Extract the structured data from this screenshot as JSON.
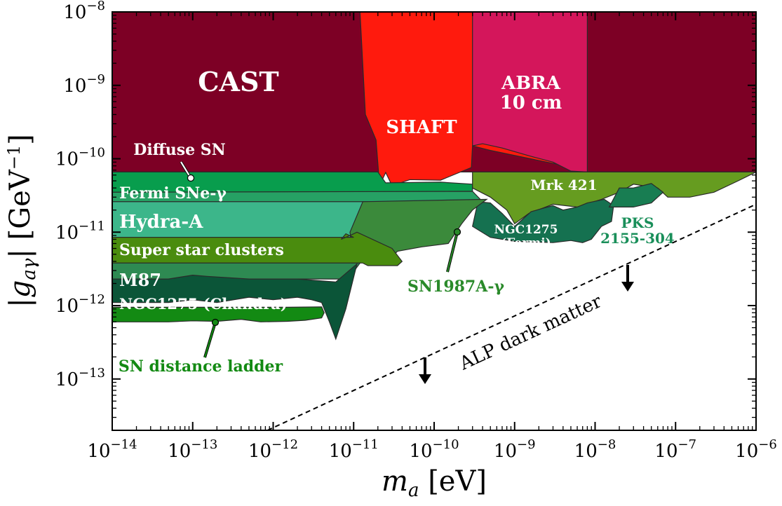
{
  "chart_data": {
    "type": "area",
    "x_scale": "log",
    "y_scale": "log",
    "xlim": [
      1e-14,
      1e-06
    ],
    "ylim": [
      2e-14,
      1e-08
    ],
    "xlabel": "m_a [eV]",
    "ylabel": "|g_aγ| [GeV^-1]",
    "x_ticks": [
      {
        "value": 1e-14,
        "base": "10",
        "exp": "−14"
      },
      {
        "value": 1e-13,
        "base": "10",
        "exp": "−13"
      },
      {
        "value": 1e-12,
        "base": "10",
        "exp": "−12"
      },
      {
        "value": 1e-11,
        "base": "10",
        "exp": "−11"
      },
      {
        "value": 1e-10,
        "base": "10",
        "exp": "−10"
      },
      {
        "value": 1e-09,
        "base": "10",
        "exp": "−9"
      },
      {
        "value": 1e-08,
        "base": "10",
        "exp": "−8"
      },
      {
        "value": 1e-07,
        "base": "10",
        "exp": "−7"
      },
      {
        "value": 1e-06,
        "base": "10",
        "exp": "−6"
      }
    ],
    "y_ticks": [
      {
        "value": 1e-13,
        "base": "10",
        "exp": "−13"
      },
      {
        "value": 1e-12,
        "base": "10",
        "exp": "−12"
      },
      {
        "value": 1e-11,
        "base": "10",
        "exp": "−11"
      },
      {
        "value": 1e-10,
        "base": "10",
        "exp": "−10"
      },
      {
        "value": 1e-09,
        "base": "10",
        "exp": "−9"
      },
      {
        "value": 1e-08,
        "base": "10",
        "exp": "−8"
      }
    ],
    "regions": [
      {
        "name": "CAST",
        "color": "#7d0025",
        "label_color": "#ffffff",
        "polygon": [
          [
            1e-14,
            1e-08
          ],
          [
            1e-06,
            1e-08
          ],
          [
            1e-06,
            6.6e-11
          ],
          [
            1e-14,
            6.6e-11
          ]
        ]
      },
      {
        "name": "SHAFT",
        "color": "#ff1a0d",
        "label_color": "#ffffff",
        "polygon": [
          [
            1.2e-11,
            1e-08
          ],
          [
            8e-09,
            1e-08
          ],
          [
            8e-09,
            7e-11
          ],
          [
            2.5e-09,
            9e-11
          ],
          [
            5e-10,
            1.3e-10
          ],
          [
            3e-10,
            1.5e-10
          ],
          [
            2.9e-10,
            7.6e-11
          ],
          [
            1.2e-10,
            5.1e-11
          ],
          [
            5e-11,
            5.2e-11
          ],
          [
            3e-11,
            4.3e-11
          ],
          [
            2.5e-11,
            6.5e-11
          ],
          [
            2.1e-11,
            4.3e-11
          ],
          [
            1.9e-11,
            1.8e-10
          ],
          [
            1.4e-11,
            4e-10
          ]
        ]
      },
      {
        "name": "ABRA\n10 cm",
        "color": "#d4165b",
        "label_color": "#ffffff",
        "polygon": [
          [
            3e-10,
            1e-08
          ],
          [
            8e-09,
            1e-08
          ],
          [
            8e-09,
            6.6e-11
          ],
          [
            5e-09,
            6.8e-11
          ],
          [
            3e-09,
            9e-11
          ],
          [
            1.5e-09,
            1.1e-10
          ],
          [
            7e-10,
            1.4e-10
          ],
          [
            4e-10,
            1.6e-10
          ],
          [
            3e-10,
            1.5e-10
          ]
        ]
      },
      {
        "name": "Diffuse SN",
        "color": "#089d4d",
        "label_color": "#ffffff",
        "polygon": [
          [
            1e-14,
            6.6e-11
          ],
          [
            2e-11,
            6.6e-11
          ],
          [
            2.5e-11,
            4.7e-11
          ],
          [
            1.2e-10,
            4.8e-11
          ],
          [
            3e-10,
            4.5e-11
          ],
          [
            3e-10,
            3.5e-11
          ],
          [
            1e-14,
            3.5e-11
          ]
        ]
      },
      {
        "name": "Fermi SNe-γ",
        "color": "#26a164",
        "label_color": "#ffffff",
        "polygon": [
          [
            1e-14,
            3.5e-11
          ],
          [
            3e-10,
            3.6e-11
          ],
          [
            4e-10,
            2.6e-11
          ],
          [
            1e-14,
            2.6e-11
          ]
        ]
      },
      {
        "name": "Hydra-A",
        "color": "#3cb68a",
        "label_color": "#ffffff",
        "polygon": [
          [
            1e-14,
            2.6e-11
          ],
          [
            2.3e-11,
            2.6e-11
          ],
          [
            1.2e-11,
            1.5e-11
          ],
          [
            9e-12,
            8.5e-12
          ],
          [
            1e-14,
            8.5e-12
          ]
        ]
      },
      {
        "name": "Mrk 421",
        "color": "#669c20",
        "label_color": "#ffffff",
        "polygon": [
          [
            3e-10,
            6.6e-11
          ],
          [
            1e-06,
            6.6e-11
          ],
          [
            6e-07,
            5e-11
          ],
          [
            3e-07,
            3.5e-11
          ],
          [
            1.5e-07,
            3e-11
          ],
          [
            8e-08,
            3e-11
          ],
          [
            6e-08,
            4e-11
          ],
          [
            3e-08,
            4.5e-11
          ],
          [
            2e-08,
            3.5e-11
          ],
          [
            1.2e-08,
            2.8e-11
          ],
          [
            6e-09,
            2.2e-11
          ],
          [
            3e-09,
            2.4e-11
          ],
          [
            1.5e-09,
            1.8e-11
          ],
          [
            1e-09,
            1.3e-11
          ],
          [
            8e-10,
            2e-11
          ],
          [
            5e-10,
            3e-11
          ],
          [
            3e-10,
            4e-11
          ]
        ]
      },
      {
        "name": "NGC1275\n(Fermi)",
        "color": "#157150",
        "label_color": "#ffffff",
        "polygon": [
          [
            3.5e-10,
            2.6e-11
          ],
          [
            5e-10,
            2.5e-11
          ],
          [
            7e-10,
            1.8e-11
          ],
          [
            1e-09,
            1.2e-11
          ],
          [
            1.6e-09,
            1.9e-11
          ],
          [
            2.2e-09,
            2.1e-11
          ],
          [
            3e-09,
            2.3e-11
          ],
          [
            4e-09,
            2e-11
          ],
          [
            6e-09,
            2.2e-11
          ],
          [
            8e-09,
            2.5e-11
          ],
          [
            1.3e-08,
            2.8e-11
          ],
          [
            1.7e-08,
            2.3e-11
          ],
          [
            1.6e-08,
            1.4e-11
          ],
          [
            1.2e-08,
            1.2e-11
          ],
          [
            9e-09,
            8e-12
          ],
          [
            7e-09,
            7.2e-12
          ],
          [
            5e-09,
            7.7e-12
          ],
          [
            3e-09,
            7.2e-12
          ],
          [
            1e-09,
            7.5e-12
          ],
          [
            5e-10,
            8.5e-12
          ],
          [
            3e-10,
            1.2e-11
          ]
        ]
      },
      {
        "name": "PKS\n2155-304",
        "color": "#187d52",
        "label_color": "#1a8f5a",
        "polygon": [
          [
            2e-08,
            4e-11
          ],
          [
            3e-08,
            4e-11
          ],
          [
            5e-08,
            4.6e-11
          ],
          [
            7e-08,
            3.5e-11
          ],
          [
            5e-08,
            2.5e-11
          ],
          [
            3e-08,
            2.2e-11
          ],
          [
            1.5e-08,
            2.2e-11
          ]
        ]
      },
      {
        "name": "SN1987A-γ",
        "color": "#3b8a3b",
        "label_color": "#2a8a2a",
        "polygon": [
          [
            1.3e-11,
            2.6e-11
          ],
          [
            4.5e-10,
            2.8e-11
          ],
          [
            3e-10,
            2e-11
          ],
          [
            2.2e-10,
            1.3e-11
          ],
          [
            1.5e-10,
            7e-12
          ],
          [
            7e-11,
            6.3e-12
          ],
          [
            3.5e-11,
            5.5e-12
          ],
          [
            2.5e-11,
            3.7e-12
          ],
          [
            1.5e-11,
            3.7e-12
          ],
          [
            1e-11,
            5e-12
          ],
          [
            9e-12,
            1e-11
          ]
        ]
      },
      {
        "name": "Super star clusters",
        "color": "#4a8c0e",
        "label_color": "#ffffff",
        "polygon": [
          [
            1e-14,
            8.5e-12
          ],
          [
            1e-11,
            8.5e-12
          ],
          [
            8e-12,
            9.5e-12
          ],
          [
            7e-12,
            8e-12
          ],
          [
            9e-12,
            9e-12
          ],
          [
            1.1e-11,
            1e-11
          ],
          [
            3e-11,
            6e-12
          ],
          [
            4e-11,
            4e-12
          ],
          [
            3.5e-11,
            3.5e-12
          ],
          [
            1.5e-11,
            3.5e-12
          ],
          [
            1.3e-11,
            3.8e-12
          ],
          [
            1e-14,
            3.8e-12
          ]
        ]
      },
      {
        "name": "M87",
        "color": "#2e8a52",
        "label_color": "#ffffff",
        "polygon": [
          [
            1e-14,
            3.8e-12
          ],
          [
            1.2e-11,
            3.8e-12
          ],
          [
            1e-11,
            2.9e-12
          ],
          [
            8e-12,
            2.3e-12
          ],
          [
            1e-14,
            2.3e-12
          ]
        ]
      },
      {
        "name": "NGC1275 (Chandra)",
        "color": "#0b5538",
        "label_color": "#ffffff",
        "polygon": [
          [
            1e-14,
            2.3e-12
          ],
          [
            5e-14,
            2.3e-12
          ],
          [
            1e-13,
            2.6e-12
          ],
          [
            1.5e-13,
            2.5e-12
          ],
          [
            5e-13,
            2.3e-12
          ],
          [
            2e-12,
            2.3e-12
          ],
          [
            6e-12,
            2.1e-12
          ],
          [
            1.1e-11,
            3.7e-12
          ],
          [
            8e-12,
            9e-13
          ],
          [
            6e-12,
            3.5e-13
          ],
          [
            5e-12,
            6e-13
          ],
          [
            4e-12,
            1.1e-12
          ],
          [
            3e-12,
            1.2e-12
          ],
          [
            2e-12,
            1.3e-12
          ],
          [
            1e-12,
            1.2e-12
          ],
          [
            5e-13,
            1.3e-12
          ],
          [
            2e-13,
            1.1e-12
          ],
          [
            1e-13,
            1.2e-12
          ],
          [
            5e-14,
            1.1e-12
          ],
          [
            1e-14,
            1.1e-12
          ]
        ]
      },
      {
        "name": "SN distance ladder",
        "color": "#138a13",
        "label_color": "#138a13",
        "polygon": [
          [
            1e-14,
            9.5e-13
          ],
          [
            1.5e-12,
            9.5e-13
          ],
          [
            4e-12,
            9.6e-13
          ],
          [
            4.3e-12,
            8e-13
          ],
          [
            4e-12,
            6.8e-13
          ],
          [
            2.5e-12,
            6.3e-13
          ],
          [
            1.5e-12,
            6.1e-13
          ],
          [
            7e-13,
            6e-13
          ],
          [
            4e-13,
            6.5e-13
          ],
          [
            2e-13,
            6.1e-13
          ],
          [
            1e-13,
            6.2e-13
          ],
          [
            5e-14,
            6e-13
          ],
          [
            1e-14,
            6e-13
          ]
        ]
      }
    ],
    "annotations": [
      {
        "text": "ALP dark matter",
        "type": "dashed-line",
        "line": [
          [
            8.5e-13,
            2e-14
          ],
          [
            1e-06,
            2.4e-11
          ]
        ]
      }
    ]
  }
}
